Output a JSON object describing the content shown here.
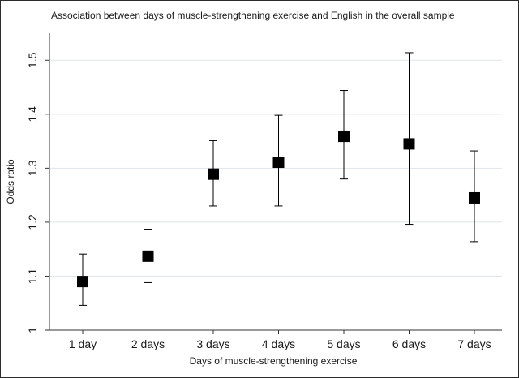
{
  "chart_data": {
    "type": "scatter",
    "title": "Association between days of muscle-strengthening exercise and English in the overall sample",
    "xlabel": "Days of muscle-strengthening exercise",
    "ylabel": "Odds ratio",
    "categories": [
      "1 day",
      "2 days",
      "3 days",
      "4 days",
      "5 days",
      "6 days",
      "7 days"
    ],
    "values": [
      1.09,
      1.137,
      1.289,
      1.311,
      1.359,
      1.345,
      1.245
    ],
    "lower": [
      1.046,
      1.088,
      1.23,
      1.23,
      1.28,
      1.196,
      1.164
    ],
    "upper": [
      1.141,
      1.187,
      1.351,
      1.398,
      1.444,
      1.514,
      1.332
    ],
    "ylim": [
      1.0,
      1.55
    ],
    "yticks": [
      1,
      1.1,
      1.2,
      1.3,
      1.4,
      1.5
    ],
    "ytick_labels": [
      "1",
      "1.1",
      "1.2",
      "1.3",
      "1.4",
      "1.5"
    ],
    "grid": true,
    "marker": "square",
    "colors": {
      "marker": "#000000",
      "grid": "#dfe5ea",
      "axis": "#333333"
    }
  }
}
